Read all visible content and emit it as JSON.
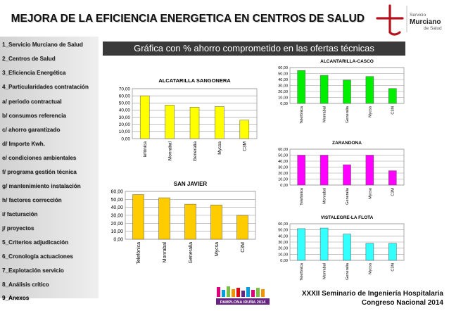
{
  "title": "MEJORA DE LA EFICIENCIA ENERGETICA EN CENTROS DE SALUD",
  "subtitle": "Gráfica con % ahorro comprometido en las ofertas técnicas",
  "logo": {
    "line1": "Servicio",
    "line2": "Murciano",
    "line3": "de Salud",
    "color": "#b5121b"
  },
  "sidebar": {
    "items": [
      {
        "label": "1_Servicio Murciano de Salud"
      },
      {
        "label": "2_Centros de Salud"
      },
      {
        "label": "3_Eficiencia Energética"
      },
      {
        "label": "4_Particularidades contratación"
      },
      {
        "label": "a/ periodo contractual"
      },
      {
        "label": "b/ consumos referencia"
      },
      {
        "label": "c/ ahorro garantizado"
      },
      {
        "label": "d/ Importe Kwh."
      },
      {
        "label": "e/ condiciones ambientales"
      },
      {
        "label": "f/ programa gestión técnica"
      },
      {
        "label": "g/ mantenimiento instalación"
      },
      {
        "label": "h/ factores corrección"
      },
      {
        "label": "i/ facturación"
      },
      {
        "label": "j/ proyectos"
      },
      {
        "label": "5_Criterios adjudicación"
      },
      {
        "label": "6_Cronología actuaciones"
      },
      {
        "label": "7_Explotación servicio"
      },
      {
        "label": "8_Análisis crítico"
      },
      {
        "label": "9_Anexos"
      }
    ]
  },
  "footer": {
    "line1": "XXXII Seminario de Ingeniería Hospitalaria",
    "line2": "Congreso Nacional 2014",
    "logo_text": "PAMPLONA IRUÑA 2014"
  },
  "chart_data": [
    {
      "id": "sangonera",
      "type": "bar",
      "title": "ALCATARILLA SANGONERA",
      "categories": [
        "Telefónica",
        "Monrabal",
        "Generalia",
        "Mycsa",
        "C3M"
      ],
      "category_labels": [
        "lefónica",
        "Monrabal",
        "Generalia",
        "Mycsa",
        "C3M"
      ],
      "values": [
        60,
        47,
        44,
        45,
        26
      ],
      "ylim": [
        0,
        70
      ],
      "yticks": [
        "0,00",
        "10,00",
        "20,00",
        "30,00",
        "40,00",
        "50,00",
        "60,00",
        "70,00"
      ],
      "color": "#ffff00",
      "grid": true
    },
    {
      "id": "sanjavier",
      "type": "bar",
      "title": "SAN JAVIER",
      "categories": [
        "Telefónica",
        "Monrabal",
        "Generalia",
        "Mycsa",
        "C3M"
      ],
      "category_labels": [
        "Telefónica",
        "Monrabal",
        "Generalia",
        "Mycsa",
        "C3M"
      ],
      "values": [
        56,
        52,
        44,
        43,
        30
      ],
      "ylim": [
        0,
        60
      ],
      "yticks": [
        "0,00",
        "10,00",
        "20,00",
        "30,00",
        "40,00",
        "50,00",
        "60,00"
      ],
      "color": "#ffcc00",
      "grid": true
    },
    {
      "id": "casco",
      "type": "bar",
      "title": "ALCANTARILLA-CASCO",
      "categories": [
        "Telefónica",
        "Monrabal",
        "Generalia",
        "Mycsa",
        "C3M"
      ],
      "category_labels": [
        "Telefónica",
        "Monrabal",
        "Generalia",
        "Mycsa",
        "C3M"
      ],
      "values": [
        55,
        47,
        39,
        45,
        25
      ],
      "ylim": [
        0,
        60
      ],
      "yticks": [
        "0,00",
        "10,00",
        "20,00",
        "30,00",
        "40,00",
        "50,00",
        "60,00"
      ],
      "color": "#00ee00",
      "grid": true
    },
    {
      "id": "zarandona",
      "type": "bar",
      "title": "ZARANDONA",
      "categories": [
        "Telefónica",
        "Monrabal",
        "Generalia",
        "Mycsa",
        "C3M"
      ],
      "category_labels": [
        "Telefónica",
        "Monrabal",
        "Generalia",
        "Mycsa",
        "C3M"
      ],
      "values": [
        50,
        50,
        34,
        50,
        24
      ],
      "ylim": [
        0,
        60
      ],
      "yticks": [
        "0,00",
        "10,00",
        "20,00",
        "30,00",
        "40,00",
        "50,00",
        "60,00"
      ],
      "color": "#ff00ff",
      "grid": true
    },
    {
      "id": "flota",
      "type": "bar",
      "title": "VISTALEGRE-LA FLOTA",
      "categories": [
        "Telefónica",
        "Monrabal",
        "Generalia",
        "Mycsa",
        "C3M"
      ],
      "category_labels": [
        "Telefónica",
        "Monrabal",
        "Generalia",
        "Mycsa",
        "C3M"
      ],
      "values": [
        52,
        53,
        43,
        28,
        28
      ],
      "ylim": [
        0,
        60
      ],
      "yticks": [
        "0,00",
        "10,00",
        "20,00",
        "30,00",
        "40,00",
        "50,00",
        "60,00"
      ],
      "color": "#33ffff",
      "grid": true
    }
  ]
}
